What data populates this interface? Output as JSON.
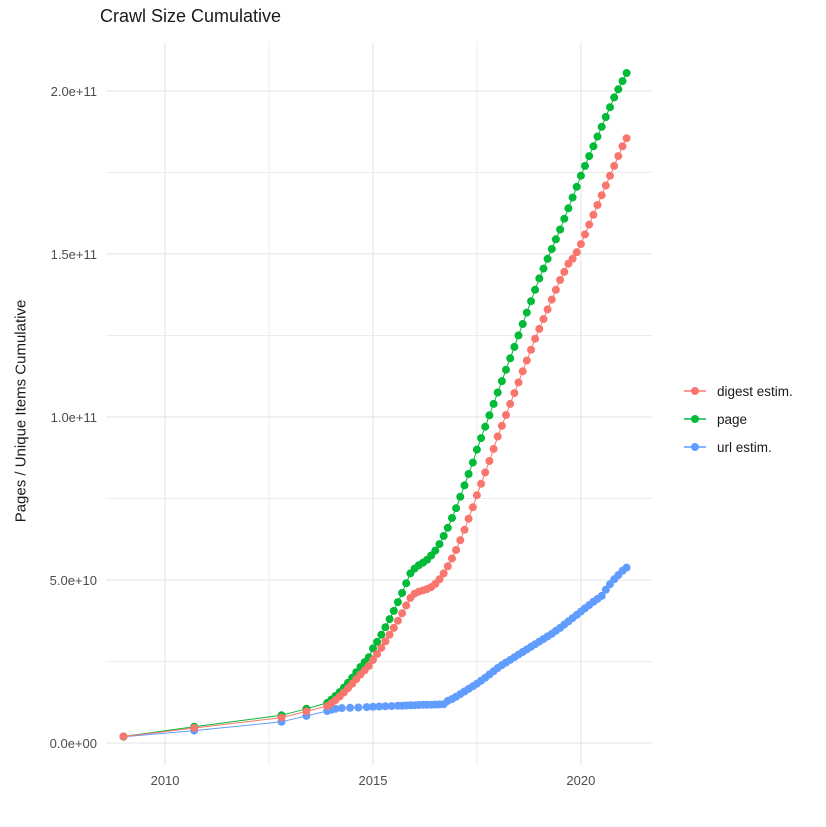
{
  "chart_data": {
    "type": "scatter",
    "title": "Crawl Size Cumulative",
    "ylabel": "Pages / Unique Items Cumulative",
    "xlabel": "",
    "grid": true,
    "legend_position": "right",
    "value_unit": "billions (1e9)",
    "x_range_years": [
      2008.58,
      2021.71
    ],
    "y_range_billions": [
      -6.75,
      215
    ],
    "x_ticks": [
      {
        "label": "2010",
        "year": 2010
      },
      {
        "label": "2015",
        "year": 2015
      },
      {
        "label": "2020",
        "year": 2020
      }
    ],
    "y_ticks": [
      {
        "label": "0.0e+00",
        "billions": 0
      },
      {
        "label": "5.0e+10",
        "billions": 50
      },
      {
        "label": "1.0e+11",
        "billions": 100
      },
      {
        "label": "1.5e+11",
        "billions": 150
      },
      {
        "label": "2.0e+11",
        "billions": 200
      }
    ],
    "x_minor_gridlines_years": [
      2012.5,
      2017.5
    ],
    "y_minor_gridlines_billions": [
      25,
      75,
      125,
      175
    ],
    "colors": {
      "major_grid": "#e3e3e3",
      "minor_grid": "#ededed",
      "title_text": "#1a1a1a",
      "tick_text": "#4d4d4d"
    },
    "series": [
      {
        "name": "digest estim.",
        "color": "#F8766D",
        "points": [
          [
            2009.0,
            2.0
          ],
          [
            2010.7,
            4.6
          ],
          [
            2012.8,
            7.8
          ],
          [
            2013.4,
            9.7
          ],
          [
            2013.9,
            11.3
          ],
          [
            2014.0,
            12.2
          ],
          [
            2014.1,
            13.2
          ],
          [
            2014.2,
            14.3
          ],
          [
            2014.3,
            15.5
          ],
          [
            2014.4,
            16.8
          ],
          [
            2014.5,
            18.2
          ],
          [
            2014.6,
            19.6
          ],
          [
            2014.7,
            21.0
          ],
          [
            2014.8,
            22.3
          ],
          [
            2014.9,
            23.6
          ],
          [
            2015.0,
            25.5
          ],
          [
            2015.1,
            27.3
          ],
          [
            2015.2,
            29.2
          ],
          [
            2015.3,
            31.2
          ],
          [
            2015.4,
            33.2
          ],
          [
            2015.5,
            35.3
          ],
          [
            2015.6,
            37.5
          ],
          [
            2015.7,
            39.8
          ],
          [
            2015.8,
            42.2
          ],
          [
            2015.9,
            44.5
          ],
          [
            2016.0,
            45.8
          ],
          [
            2016.1,
            46.4
          ],
          [
            2016.2,
            46.8
          ],
          [
            2016.3,
            47.2
          ],
          [
            2016.4,
            47.8
          ],
          [
            2016.5,
            48.8
          ],
          [
            2016.6,
            50.2
          ],
          [
            2016.7,
            52.0
          ],
          [
            2016.8,
            54.2
          ],
          [
            2016.9,
            56.6
          ],
          [
            2017.0,
            59.2
          ],
          [
            2017.1,
            62.2
          ],
          [
            2017.2,
            65.4
          ],
          [
            2017.3,
            68.8
          ],
          [
            2017.4,
            72.3
          ],
          [
            2017.5,
            76.0
          ],
          [
            2017.6,
            79.5
          ],
          [
            2017.7,
            83.0
          ],
          [
            2017.8,
            86.5
          ],
          [
            2017.9,
            90.2
          ],
          [
            2018.0,
            94.0
          ],
          [
            2018.1,
            97.3
          ],
          [
            2018.2,
            100.6
          ],
          [
            2018.3,
            104.0
          ],
          [
            2018.4,
            107.3
          ],
          [
            2018.5,
            110.6
          ],
          [
            2018.6,
            114.0
          ],
          [
            2018.7,
            117.3
          ],
          [
            2018.8,
            120.6
          ],
          [
            2018.9,
            124.0
          ],
          [
            2019.0,
            127.0
          ],
          [
            2019.1,
            130.0
          ],
          [
            2019.2,
            133.0
          ],
          [
            2019.3,
            136.0
          ],
          [
            2019.4,
            139.0
          ],
          [
            2019.5,
            142.0
          ],
          [
            2019.6,
            144.5
          ],
          [
            2019.7,
            147.0
          ],
          [
            2019.8,
            148.5
          ],
          [
            2019.9,
            150.5
          ],
          [
            2020.0,
            153.0
          ],
          [
            2020.1,
            156.0
          ],
          [
            2020.2,
            159.0
          ],
          [
            2020.3,
            162.0
          ],
          [
            2020.4,
            165.0
          ],
          [
            2020.5,
            168.0
          ],
          [
            2020.6,
            171.0
          ],
          [
            2020.7,
            174.0
          ],
          [
            2020.8,
            177.0
          ],
          [
            2020.9,
            180.0
          ],
          [
            2021.0,
            183.0
          ],
          [
            2021.1,
            185.5
          ]
        ]
      },
      {
        "name": "page",
        "color": "#00BA38",
        "points": [
          [
            2009.0,
            2.0
          ],
          [
            2010.7,
            5.0
          ],
          [
            2012.8,
            8.5
          ],
          [
            2013.4,
            10.5
          ],
          [
            2013.9,
            12.3
          ],
          [
            2014.0,
            13.3
          ],
          [
            2014.1,
            14.4
          ],
          [
            2014.2,
            15.6
          ],
          [
            2014.3,
            17.0
          ],
          [
            2014.4,
            18.5
          ],
          [
            2014.5,
            20.0
          ],
          [
            2014.6,
            21.7
          ],
          [
            2014.7,
            23.3
          ],
          [
            2014.8,
            24.8
          ],
          [
            2014.9,
            26.3
          ],
          [
            2015.0,
            29.0
          ],
          [
            2015.1,
            31.0
          ],
          [
            2015.2,
            33.2
          ],
          [
            2015.3,
            35.5
          ],
          [
            2015.4,
            38.0
          ],
          [
            2015.5,
            40.5
          ],
          [
            2015.6,
            43.2
          ],
          [
            2015.7,
            46.0
          ],
          [
            2015.8,
            49.0
          ],
          [
            2015.9,
            52.0
          ],
          [
            2016.0,
            53.5
          ],
          [
            2016.1,
            54.5
          ],
          [
            2016.2,
            55.3
          ],
          [
            2016.3,
            56.2
          ],
          [
            2016.4,
            57.5
          ],
          [
            2016.5,
            59.0
          ],
          [
            2016.6,
            61.0
          ],
          [
            2016.7,
            63.5
          ],
          [
            2016.8,
            66.0
          ],
          [
            2016.9,
            69.0
          ],
          [
            2017.0,
            72.0
          ],
          [
            2017.1,
            75.5
          ],
          [
            2017.2,
            79.0
          ],
          [
            2017.3,
            82.5
          ],
          [
            2017.4,
            86.0
          ],
          [
            2017.5,
            90.0
          ],
          [
            2017.6,
            93.5
          ],
          [
            2017.7,
            97.0
          ],
          [
            2017.8,
            100.5
          ],
          [
            2017.9,
            104.0
          ],
          [
            2018.0,
            107.5
          ],
          [
            2018.1,
            111.0
          ],
          [
            2018.2,
            114.5
          ],
          [
            2018.3,
            118.0
          ],
          [
            2018.4,
            121.5
          ],
          [
            2018.5,
            125.0
          ],
          [
            2018.6,
            128.5
          ],
          [
            2018.7,
            132.0
          ],
          [
            2018.8,
            135.5
          ],
          [
            2018.9,
            139.0
          ],
          [
            2019.0,
            142.5
          ],
          [
            2019.1,
            145.5
          ],
          [
            2019.2,
            148.5
          ],
          [
            2019.3,
            151.5
          ],
          [
            2019.4,
            154.5
          ],
          [
            2019.5,
            157.5
          ],
          [
            2019.6,
            160.8
          ],
          [
            2019.7,
            164.0
          ],
          [
            2019.8,
            167.3
          ],
          [
            2019.9,
            170.6
          ],
          [
            2020.0,
            174.0
          ],
          [
            2020.1,
            177.0
          ],
          [
            2020.2,
            180.0
          ],
          [
            2020.3,
            183.0
          ],
          [
            2020.4,
            186.0
          ],
          [
            2020.5,
            189.0
          ],
          [
            2020.6,
            192.0
          ],
          [
            2020.7,
            195.0
          ],
          [
            2020.8,
            198.0
          ],
          [
            2020.9,
            200.5
          ],
          [
            2021.0,
            203.0
          ],
          [
            2021.1,
            205.5
          ]
        ]
      },
      {
        "name": "url estim.",
        "color": "#619CFF",
        "points": [
          [
            2009.0,
            1.9
          ],
          [
            2010.7,
            3.8
          ],
          [
            2012.8,
            6.5
          ],
          [
            2013.4,
            8.3
          ],
          [
            2013.9,
            9.8
          ],
          [
            2014.0,
            10.2
          ],
          [
            2014.1,
            10.5
          ],
          [
            2014.25,
            10.7
          ],
          [
            2014.45,
            10.8
          ],
          [
            2014.65,
            10.9
          ],
          [
            2014.85,
            11.0
          ],
          [
            2015.0,
            11.1
          ],
          [
            2015.15,
            11.2
          ],
          [
            2015.3,
            11.25
          ],
          [
            2015.45,
            11.3
          ],
          [
            2015.6,
            11.4
          ],
          [
            2015.7,
            11.45
          ],
          [
            2015.8,
            11.5
          ],
          [
            2015.9,
            11.55
          ],
          [
            2016.0,
            11.6
          ],
          [
            2016.1,
            11.65
          ],
          [
            2016.2,
            11.7
          ],
          [
            2016.3,
            11.72
          ],
          [
            2016.4,
            11.75
          ],
          [
            2016.5,
            11.8
          ],
          [
            2016.6,
            11.85
          ],
          [
            2016.7,
            11.9
          ],
          [
            2016.8,
            12.9
          ],
          [
            2016.9,
            13.5
          ],
          [
            2017.0,
            14.2
          ],
          [
            2017.1,
            15.0
          ],
          [
            2017.2,
            15.8
          ],
          [
            2017.3,
            16.6
          ],
          [
            2017.4,
            17.4
          ],
          [
            2017.5,
            18.2
          ],
          [
            2017.6,
            19.1
          ],
          [
            2017.7,
            20.0
          ],
          [
            2017.8,
            21.0
          ],
          [
            2017.9,
            22.0
          ],
          [
            2018.0,
            23.0
          ],
          [
            2018.1,
            23.9
          ],
          [
            2018.2,
            24.7
          ],
          [
            2018.3,
            25.5
          ],
          [
            2018.4,
            26.3
          ],
          [
            2018.5,
            27.1
          ],
          [
            2018.6,
            27.9
          ],
          [
            2018.7,
            28.7
          ],
          [
            2018.8,
            29.5
          ],
          [
            2018.9,
            30.3
          ],
          [
            2019.0,
            31.1
          ],
          [
            2019.1,
            31.9
          ],
          [
            2019.2,
            32.7
          ],
          [
            2019.3,
            33.5
          ],
          [
            2019.4,
            34.4
          ],
          [
            2019.5,
            35.3
          ],
          [
            2019.6,
            36.3
          ],
          [
            2019.7,
            37.3
          ],
          [
            2019.8,
            38.3
          ],
          [
            2019.9,
            39.3
          ],
          [
            2020.0,
            40.3
          ],
          [
            2020.1,
            41.3
          ],
          [
            2020.2,
            42.3
          ],
          [
            2020.3,
            43.3
          ],
          [
            2020.4,
            44.2
          ],
          [
            2020.5,
            45.1
          ],
          [
            2020.6,
            47.0
          ],
          [
            2020.7,
            48.7
          ],
          [
            2020.8,
            50.2
          ],
          [
            2020.9,
            51.5
          ],
          [
            2021.0,
            52.8
          ],
          [
            2021.1,
            53.8
          ]
        ]
      }
    ]
  }
}
